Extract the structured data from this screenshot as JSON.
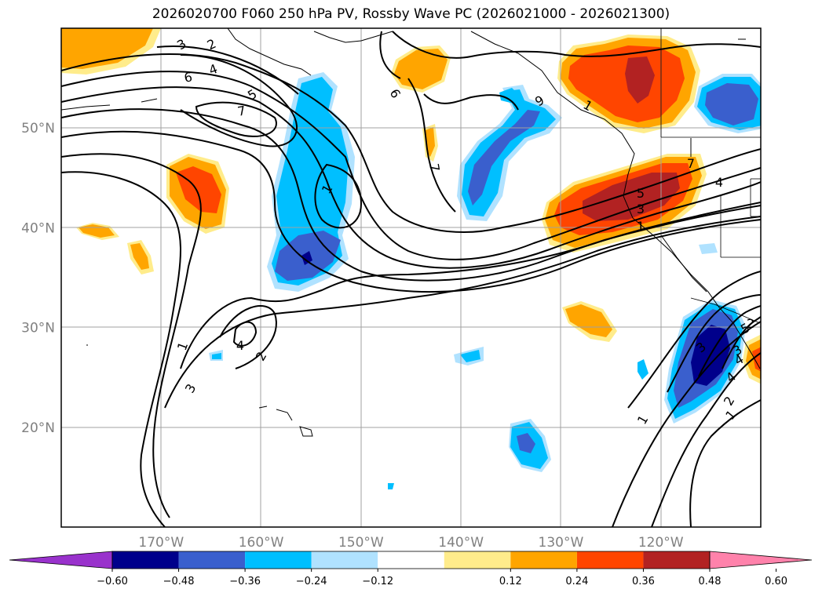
{
  "title": "2026020700 F060 250 hPa PV, Rossby Wave PC (2026021000 - 2026021300)",
  "map": {
    "lat_labels": [
      {
        "text": "50°N",
        "lat": 50
      },
      {
        "text": "40°N",
        "lat": 40
      },
      {
        "text": "30°N",
        "lat": 30
      },
      {
        "text": "20°N",
        "lat": 20
      }
    ],
    "lon_labels": [
      {
        "text": "170°W",
        "lon": -170
      },
      {
        "text": "160°W",
        "lon": -160
      },
      {
        "text": "150°W",
        "lon": -150
      },
      {
        "text": "140°W",
        "lon": -140
      },
      {
        "text": "130°W",
        "lon": -130
      },
      {
        "text": "120°W",
        "lon": -120
      }
    ],
    "contour_labels": [
      "3",
      "2",
      "4",
      "6",
      "5",
      "7",
      "1",
      "2",
      "3",
      "4",
      "9",
      "6",
      "7",
      "1",
      "5",
      "3",
      "1",
      "7",
      "4",
      "1",
      "3",
      "4",
      "2",
      "1",
      "1",
      "2",
      "3",
      "4",
      "5"
    ]
  },
  "colorbar": {
    "ticks": [
      "−0.60",
      "−0.48",
      "−0.36",
      "−0.24",
      "−0.12",
      "0.12",
      "0.24",
      "0.36",
      "0.48",
      "0.60"
    ],
    "colors": [
      "#9932cc",
      "#00008b",
      "#3a5fcd",
      "#00bfff",
      "#b0e2ff",
      "#ffffff",
      "#ffec8b",
      "#ffa500",
      "#ff4500",
      "#b22222",
      "#ff82ab"
    ]
  }
}
